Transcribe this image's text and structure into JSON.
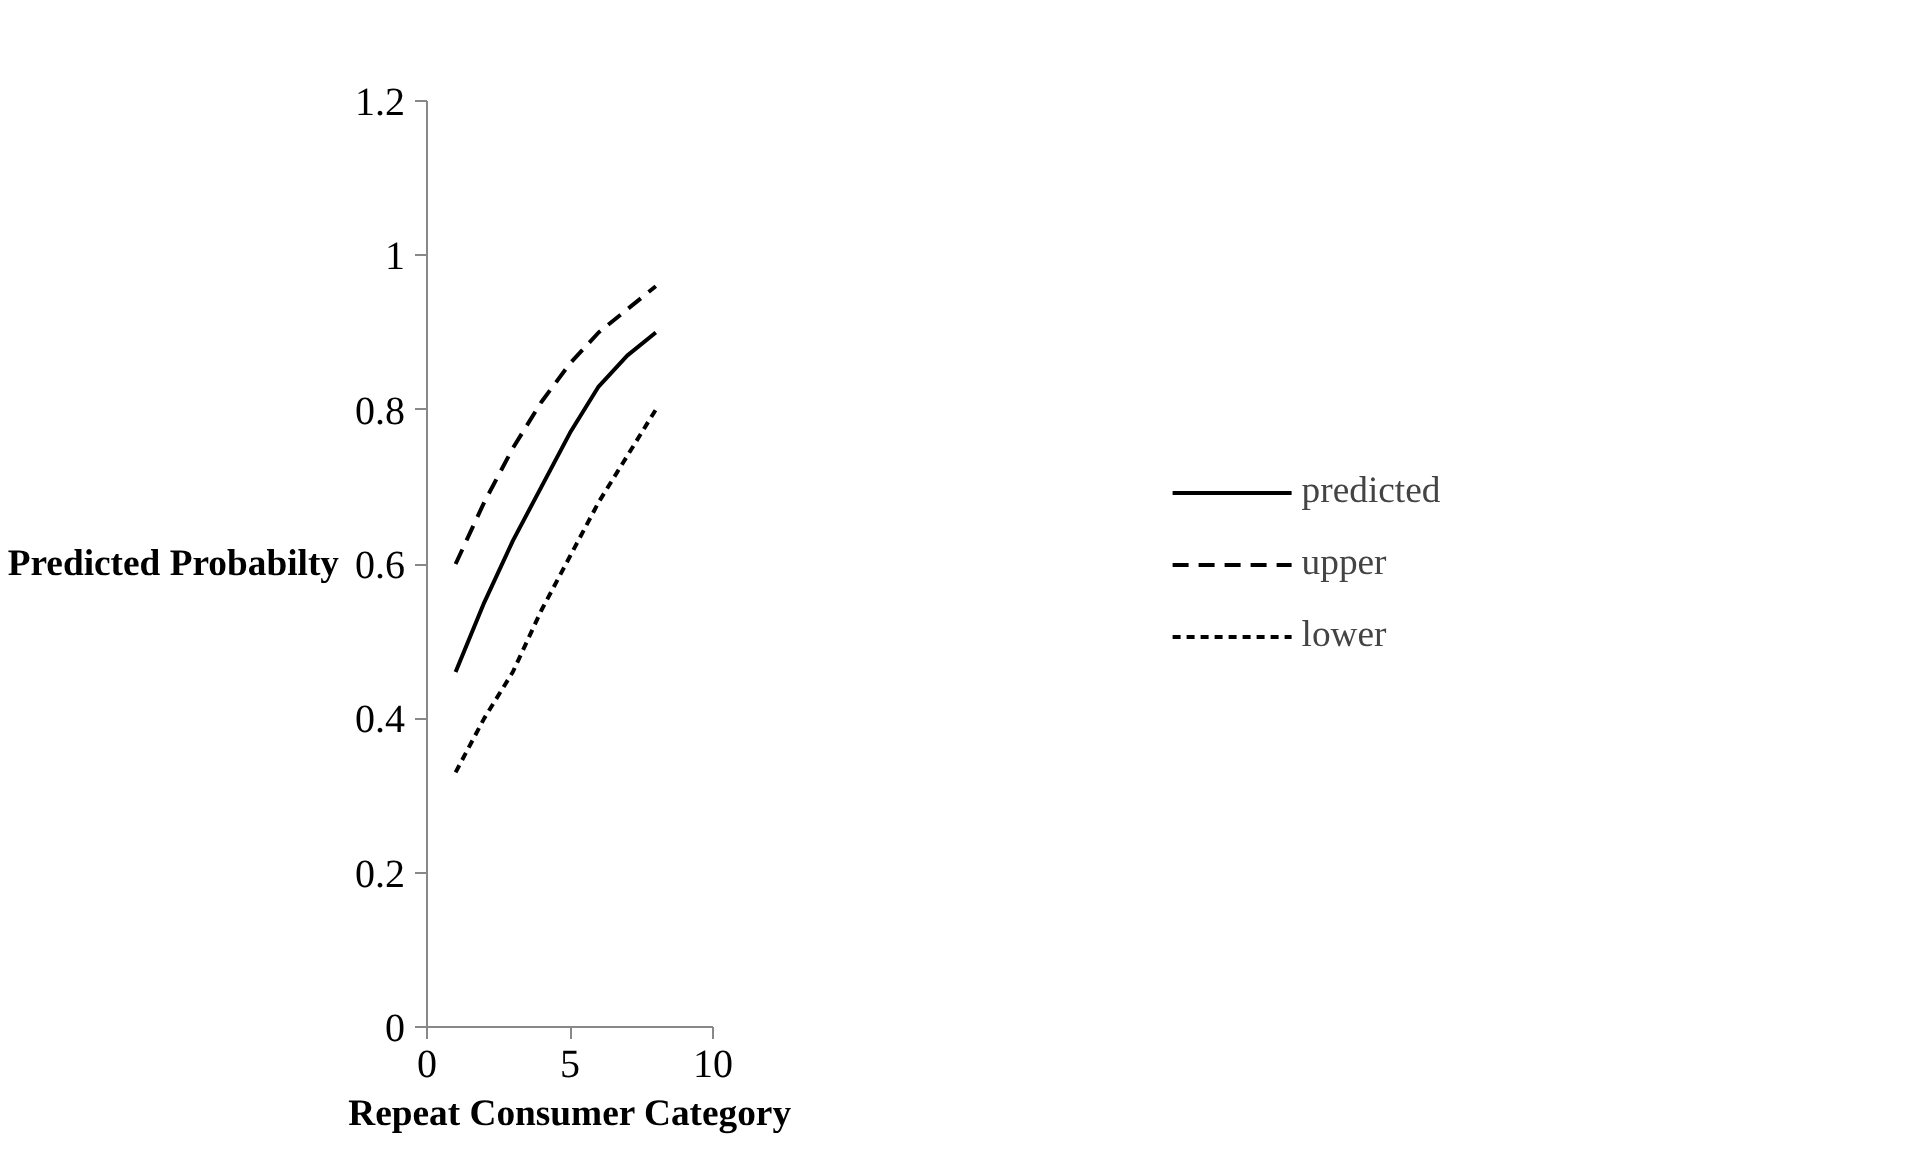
{
  "chart_data": {
    "type": "line",
    "xlabel": "Repeat Consumer Category",
    "ylabel": "Predicted Probabilty",
    "x": [
      1,
      2,
      3,
      4,
      5,
      6,
      7,
      8
    ],
    "series": [
      {
        "name": "predicted",
        "color": "#000000",
        "line_style": "solid",
        "values": [
          0.46,
          0.55,
          0.63,
          0.7,
          0.77,
          0.83,
          0.87,
          0.9
        ]
      },
      {
        "name": "upper",
        "color": "#000000",
        "line_style": "dashed",
        "values": [
          0.6,
          0.68,
          0.75,
          0.81,
          0.86,
          0.9,
          0.93,
          0.96
        ]
      },
      {
        "name": "lower",
        "color": "#000000",
        "line_style": "dotted",
        "values": [
          0.33,
          0.4,
          0.46,
          0.54,
          0.61,
          0.68,
          0.74,
          0.8
        ]
      }
    ],
    "xlim": [
      0,
      10
    ],
    "xticks": [
      0,
      5,
      10
    ],
    "ylim": [
      0,
      1.2
    ],
    "yticks": [
      0,
      0.2,
      0.4,
      0.6,
      0.8,
      1,
      1.2
    ],
    "grid": false,
    "legend": "right",
    "marker": "none"
  }
}
